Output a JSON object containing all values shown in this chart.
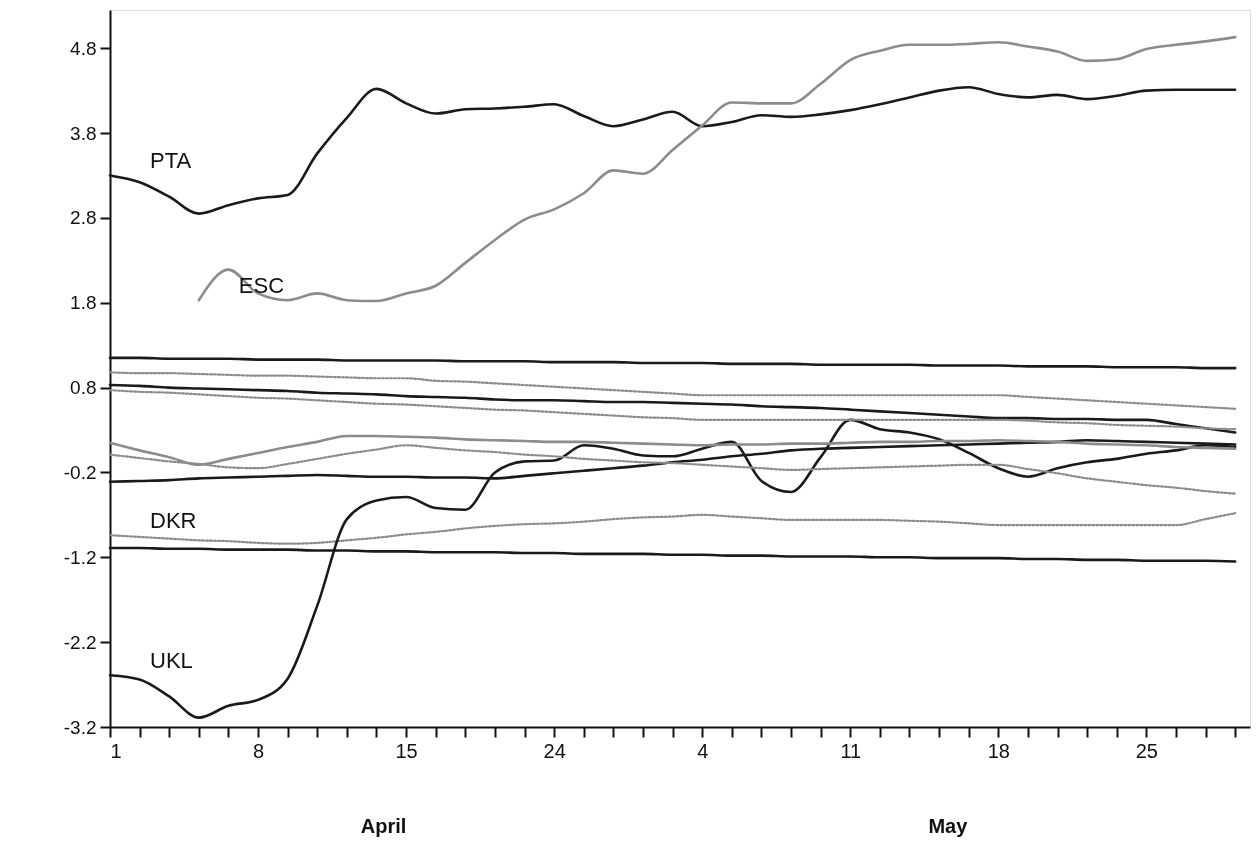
{
  "chart_data": {
    "type": "line",
    "categories": [
      "1",
      null,
      null,
      null,
      null,
      "8",
      null,
      null,
      null,
      null,
      "15",
      null,
      null,
      null,
      null,
      "24",
      null,
      null,
      null,
      null,
      "4",
      null,
      null,
      null,
      null,
      "11",
      null,
      null,
      null,
      null,
      "18",
      null,
      null,
      null,
      null,
      "25",
      null,
      null,
      null
    ],
    "ylim": [
      -3.2,
      5.25
    ],
    "yticks": [
      -3.2,
      -2.2,
      -1.2,
      -0.2,
      0.8,
      1.8,
      2.8,
      3.8,
      4.8
    ],
    "grid": false,
    "annotations": [
      "April",
      "May"
    ],
    "series": [
      {
        "name": "PTA",
        "color": "#1a1a1a",
        "line_style": "solid",
        "values": [
          3.3,
          3.22,
          3.05,
          2.85,
          2.95,
          3.03,
          3.07,
          3.56,
          3.98,
          4.32,
          4.15,
          4.03,
          4.08,
          4.09,
          4.11,
          4.14,
          4.0,
          3.88,
          3.96,
          4.05,
          3.88,
          3.93,
          4.01,
          3.99,
          4.02,
          4.07,
          4.14,
          4.22,
          4.3,
          4.34,
          4.26,
          4.22,
          4.25,
          4.2,
          4.24,
          4.3,
          4.31,
          4.31,
          4.31
        ]
      },
      {
        "name": "ESC",
        "color": "#8c8c8c",
        "line_style": "solid",
        "values": [
          null,
          null,
          null,
          1.83,
          2.19,
          1.91,
          1.83,
          1.91,
          1.83,
          1.82,
          1.91,
          2.0,
          2.27,
          2.54,
          2.78,
          2.9,
          3.09,
          3.36,
          3.32,
          3.6,
          3.89,
          4.16,
          4.15,
          4.15,
          4.38,
          4.66,
          4.77,
          4.84,
          4.84,
          4.85,
          4.87,
          4.82,
          4.76,
          4.65,
          4.67,
          4.79,
          4.84,
          4.88,
          4.93
        ]
      },
      {
        "name": "DKR",
        "color": "#8c8c8c",
        "line_style": "dotted",
        "values": [
          -0.94,
          -0.96,
          -0.98,
          -1.0,
          -1.01,
          -1.03,
          -1.04,
          -1.03,
          -1.0,
          -0.97,
          -0.93,
          -0.9,
          -0.86,
          -0.83,
          -0.81,
          -0.8,
          -0.78,
          -0.75,
          -0.73,
          -0.72,
          -0.7,
          -0.72,
          -0.74,
          -0.76,
          -0.76,
          -0.76,
          -0.76,
          -0.77,
          -0.78,
          -0.8,
          -0.82,
          -0.82,
          -0.82,
          -0.82,
          -0.82,
          -0.82,
          -0.82,
          -0.75,
          -0.68
        ]
      },
      {
        "name": "UKL",
        "color": "#1a1a1a",
        "line_style": "solid",
        "values": [
          -2.59,
          -2.64,
          -2.84,
          -3.09,
          -2.95,
          -2.88,
          -2.63,
          -1.77,
          -0.75,
          -0.53,
          -0.49,
          -0.62,
          -0.64,
          -0.2,
          -0.07,
          -0.06,
          0.12,
          0.08,
          0.0,
          -0.01,
          0.08,
          0.16,
          -0.3,
          -0.43,
          -0.02,
          0.42,
          0.31,
          0.27,
          0.19,
          0.03,
          -0.15,
          -0.25,
          -0.15,
          -0.08,
          -0.04,
          0.02,
          0.06,
          0.12,
          0.1
        ]
      },
      {
        "color": "#1a1a1a",
        "line_style": "solid",
        "values": [
          1.15,
          1.15,
          1.14,
          1.14,
          1.14,
          1.13,
          1.13,
          1.13,
          1.12,
          1.12,
          1.12,
          1.12,
          1.11,
          1.11,
          1.11,
          1.1,
          1.1,
          1.1,
          1.09,
          1.09,
          1.09,
          1.08,
          1.08,
          1.08,
          1.07,
          1.07,
          1.07,
          1.07,
          1.06,
          1.06,
          1.06,
          1.05,
          1.05,
          1.05,
          1.04,
          1.04,
          1.04,
          1.03,
          1.03
        ]
      },
      {
        "color": "#1a1a1a",
        "line_style": "solid",
        "values": [
          -1.09,
          -1.09,
          -1.1,
          -1.1,
          -1.11,
          -1.11,
          -1.11,
          -1.12,
          -1.12,
          -1.13,
          -1.13,
          -1.14,
          -1.14,
          -1.14,
          -1.15,
          -1.15,
          -1.16,
          -1.16,
          -1.16,
          -1.17,
          -1.17,
          -1.18,
          -1.18,
          -1.19,
          -1.19,
          -1.19,
          -1.2,
          -1.2,
          -1.21,
          -1.21,
          -1.21,
          -1.22,
          -1.22,
          -1.23,
          -1.23,
          -1.24,
          -1.24,
          -1.24,
          -1.25
        ]
      },
      {
        "color": "#1a1a1a",
        "line_style": "solid",
        "values": [
          0.83,
          0.82,
          0.8,
          0.79,
          0.78,
          0.77,
          0.76,
          0.74,
          0.73,
          0.72,
          0.7,
          0.69,
          0.68,
          0.66,
          0.65,
          0.65,
          0.64,
          0.63,
          0.63,
          0.62,
          0.61,
          0.6,
          0.58,
          0.57,
          0.56,
          0.54,
          0.52,
          0.5,
          0.48,
          0.46,
          0.44,
          0.44,
          0.43,
          0.43,
          0.42,
          0.42,
          0.37,
          0.32,
          0.27
        ]
      },
      {
        "color": "#1a1a1a",
        "line_style": "solid",
        "values": [
          -0.31,
          -0.3,
          -0.29,
          -0.27,
          -0.26,
          -0.25,
          -0.24,
          -0.23,
          -0.24,
          -0.25,
          -0.25,
          -0.26,
          -0.26,
          -0.27,
          -0.24,
          -0.21,
          -0.18,
          -0.15,
          -0.12,
          -0.08,
          -0.05,
          -0.01,
          0.02,
          0.06,
          0.08,
          0.09,
          0.1,
          0.11,
          0.12,
          0.13,
          0.14,
          0.15,
          0.16,
          0.18,
          0.17,
          0.16,
          0.15,
          0.14,
          0.13
        ]
      },
      {
        "color": "#8c8c8c",
        "line_style": "dotted",
        "values": [
          0.98,
          0.97,
          0.97,
          0.96,
          0.95,
          0.94,
          0.94,
          0.93,
          0.92,
          0.91,
          0.91,
          0.88,
          0.87,
          0.85,
          0.83,
          0.81,
          0.79,
          0.77,
          0.75,
          0.73,
          0.71,
          0.71,
          0.71,
          0.71,
          0.71,
          0.71,
          0.71,
          0.71,
          0.71,
          0.71,
          0.71,
          0.69,
          0.67,
          0.65,
          0.63,
          0.61,
          0.59,
          0.57,
          0.55
        ]
      },
      {
        "color": "#8c8c8c",
        "line_style": "dotted",
        "values": [
          0.77,
          0.75,
          0.74,
          0.72,
          0.7,
          0.68,
          0.67,
          0.65,
          0.63,
          0.61,
          0.6,
          0.58,
          0.56,
          0.54,
          0.53,
          0.51,
          0.49,
          0.47,
          0.45,
          0.44,
          0.42,
          0.42,
          0.42,
          0.42,
          0.42,
          0.42,
          0.42,
          0.42,
          0.42,
          0.42,
          0.42,
          0.41,
          0.39,
          0.38,
          0.36,
          0.35,
          0.34,
          0.32,
          0.31
        ]
      },
      {
        "color": "#8c8c8c",
        "line_style": "solid",
        "values": [
          0.15,
          0.06,
          -0.02,
          -0.11,
          -0.04,
          0.03,
          0.1,
          0.16,
          0.23,
          0.23,
          0.22,
          0.21,
          0.19,
          0.18,
          0.17,
          0.16,
          0.16,
          0.15,
          0.14,
          0.13,
          0.12,
          0.13,
          0.13,
          0.14,
          0.14,
          0.15,
          0.16,
          0.16,
          0.17,
          0.17,
          0.18,
          0.17,
          0.16,
          0.14,
          0.13,
          0.12,
          0.1,
          0.09,
          0.08
        ]
      },
      {
        "color": "#8c8c8c",
        "line_style": "dotted",
        "values": [
          0.01,
          -0.03,
          -0.07,
          -0.1,
          -0.14,
          -0.15,
          -0.1,
          -0.04,
          0.02,
          0.07,
          0.12,
          0.09,
          0.06,
          0.04,
          0.01,
          -0.01,
          -0.04,
          -0.06,
          -0.08,
          -0.09,
          -0.11,
          -0.13,
          -0.15,
          -0.17,
          -0.16,
          -0.15,
          -0.14,
          -0.13,
          -0.12,
          -0.11,
          -0.11,
          -0.16,
          -0.21,
          -0.27,
          -0.31,
          -0.35,
          -0.38,
          -0.42,
          -0.45
        ]
      }
    ]
  }
}
